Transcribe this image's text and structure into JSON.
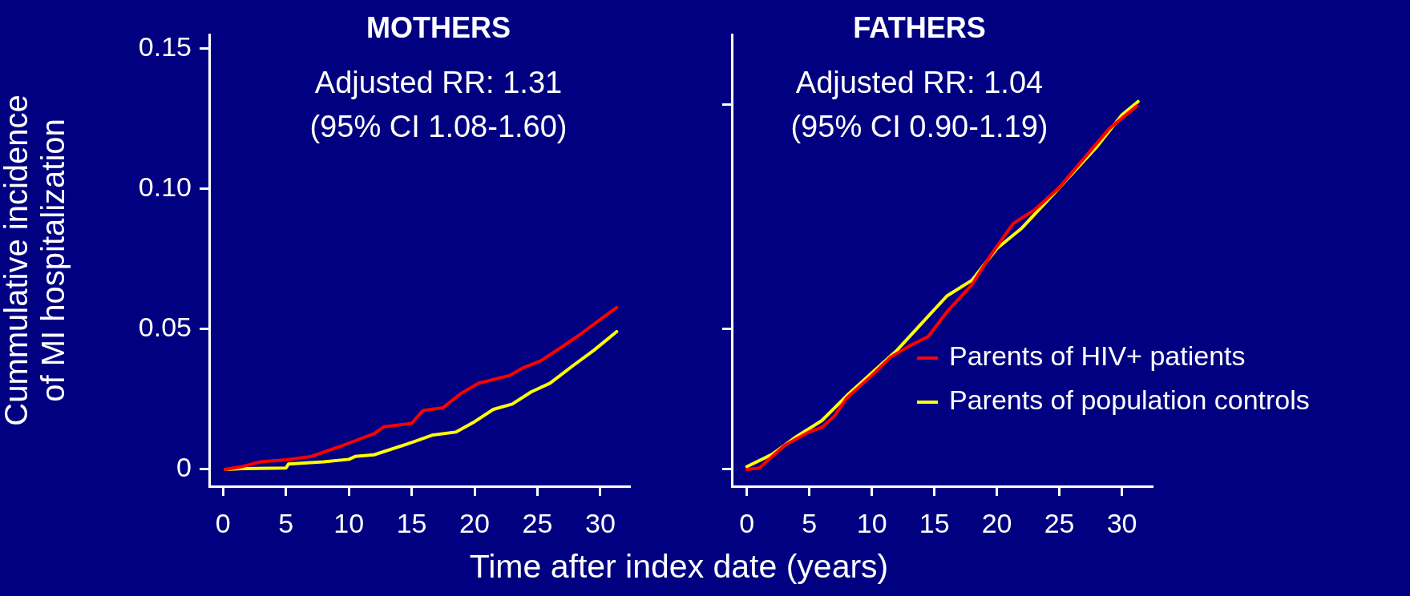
{
  "chart_data": [
    {
      "type": "line",
      "title": "MOTHERS",
      "subtitle": "Adjusted RR: 1.31\n(95% CI 1.08-1.60)",
      "ylabel": "Cummulative incidence\nof MI hospitalization",
      "xlabel": "Time after index date (years)",
      "xlim": [
        -1.1,
        32.3
      ],
      "xticks": [
        0,
        5,
        10,
        15,
        20,
        25,
        30
      ],
      "ylim": [
        -0.006,
        0.155
      ],
      "yticks": [
        0,
        {
          "value": 0.05,
          "label": "0.05"
        },
        {
          "value": 0.1,
          "label": "0.10"
        },
        0.15
      ],
      "grid": false,
      "marker": "none",
      "line_style": "solid",
      "series": [
        {
          "color": "#ff0000",
          "x": [
            0.2,
            1.4,
            3,
            5,
            7,
            9,
            10.5,
            12,
            12.8,
            15,
            15.9,
            17.5,
            18.9,
            20.3,
            22.8,
            23.9,
            25.3,
            27,
            28.4,
            29.9,
            31.3
          ],
          "values": [
            0,
            0.0009,
            0.0027,
            0.0034,
            0.0046,
            0.0077,
            0.0102,
            0.0127,
            0.0152,
            0.0164,
            0.021,
            0.022,
            0.027,
            0.0307,
            0.0335,
            0.0363,
            0.0388,
            0.0438,
            0.0481,
            0.0531,
            0.0577
          ]
        },
        {
          "color": "#ffff00",
          "x": [
            0.2,
            1.5,
            5,
            5.2,
            8,
            10,
            10.5,
            12,
            15,
            16.7,
            18.5,
            20,
            21.5,
            23,
            24.5,
            26,
            27.8,
            29.5,
            31.3
          ],
          "values": [
            0,
            0.0003,
            0.0005,
            0.0019,
            0.0027,
            0.0036,
            0.0046,
            0.0052,
            0.0096,
            0.0123,
            0.0133,
            0.017,
            0.0214,
            0.0233,
            0.0276,
            0.0307,
            0.0369,
            0.0425,
            0.0491
          ]
        }
      ]
    },
    {
      "type": "line",
      "title": "FATHERS",
      "subtitle": "Adjusted RR: 1.04\n(95% CI 0.90-1.19)",
      "xlim": [
        -1.2,
        32.4
      ],
      "xticks": [
        0,
        5,
        10,
        15,
        20,
        25,
        30
      ],
      "ylim": [
        -0.006,
        0.155
      ],
      "yticks": [
        {
          "value": 0,
          "label": null
        },
        {
          "value": 0.05,
          "label": null
        },
        {
          "value": 0.13,
          "label": null
        }
      ],
      "tick_labels": "x",
      "grid": false,
      "marker": "none",
      "line_style": "solid",
      "legend": "bottom right",
      "series": [
        {
          "name": "Parents of HIV+ patients",
          "color": "#ff0000",
          "x": [
            0,
            1,
            2,
            3,
            5,
            6,
            7,
            8,
            10,
            11.5,
            13,
            14.5,
            16,
            18,
            19.5,
            21.3,
            23,
            25,
            27,
            29,
            31.2
          ],
          "values": [
            0,
            0.0005,
            0.0045,
            0.0085,
            0.0134,
            0.015,
            0.019,
            0.0255,
            0.0335,
            0.04,
            0.044,
            0.0473,
            0.0561,
            0.0658,
            0.0763,
            0.0876,
            0.0924,
            0.1005,
            0.111,
            0.1215,
            0.1295
          ]
        },
        {
          "name": "Parents of population controls",
          "color": "#ffff00",
          "x": [
            0,
            2,
            4,
            6,
            8,
            10,
            12,
            14,
            16,
            18,
            20,
            22,
            24,
            26,
            28,
            30,
            31.3
          ],
          "values": [
            0.001,
            0.0053,
            0.0118,
            0.0174,
            0.0263,
            0.0344,
            0.0424,
            0.0521,
            0.0618,
            0.0674,
            0.0787,
            0.086,
            0.0956,
            0.1053,
            0.115,
            0.1263,
            0.1311
          ]
        }
      ]
    }
  ]
}
